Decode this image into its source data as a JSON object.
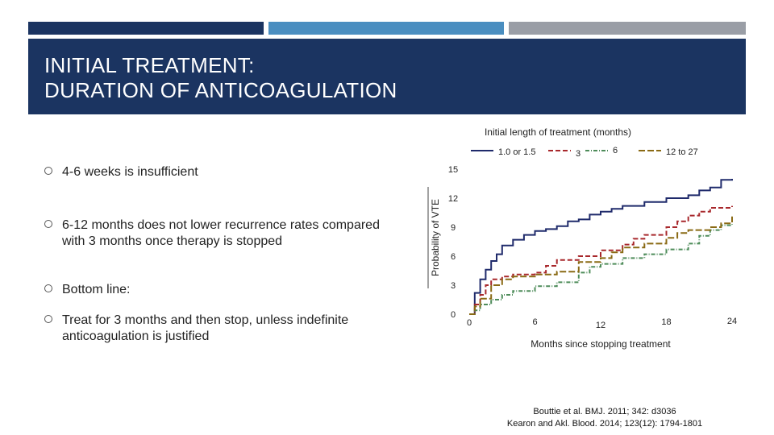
{
  "header": {
    "title_line1": "INITIAL TREATMENT:",
    "title_line2": "DURATION OF ANTICOAGULATION",
    "accent_bars": [
      "#1b3461",
      "#4a8ec0",
      "#9a9ea6"
    ],
    "background": "#1b3461"
  },
  "bullets": [
    "4-6 weeks is insufficient",
    "6-12 months does not lower recurrence rates compared with 3 months once therapy is stopped",
    "Bottom line:",
    "Treat for 3 months and then stop, unless indefinite anticoagulation is justified"
  ],
  "bullet_icon": "circle-bullet-icon",
  "chart_data": {
    "type": "line",
    "title": "Initial length of treatment (months)",
    "xlabel": "Months since stopping treatment",
    "ylabel": "Probability of VTE",
    "xlim": [
      0,
      24
    ],
    "ylim": [
      0,
      15
    ],
    "x_ticks": [
      "0",
      "6",
      "12",
      "18",
      "24"
    ],
    "y_ticks": [
      "0",
      "3",
      "6",
      "9",
      "12",
      "15"
    ],
    "grid": false,
    "legend_position": "top",
    "series": [
      {
        "name": "1.0 or 1.5",
        "color": "#1f2a6b",
        "dash": "solid",
        "points": [
          [
            0,
            0
          ],
          [
            0.5,
            2.2
          ],
          [
            1,
            3.6
          ],
          [
            1.5,
            4.6
          ],
          [
            2,
            5.5
          ],
          [
            2.5,
            6.2
          ],
          [
            3,
            7.1
          ],
          [
            4,
            7.7
          ],
          [
            5,
            8.2
          ],
          [
            6,
            8.6
          ],
          [
            7,
            8.8
          ],
          [
            8,
            9.1
          ],
          [
            9,
            9.6
          ],
          [
            10,
            9.8
          ],
          [
            11,
            10.3
          ],
          [
            12,
            10.6
          ],
          [
            13,
            10.9
          ],
          [
            14,
            11.2
          ],
          [
            16,
            11.6
          ],
          [
            18,
            12.0
          ],
          [
            20,
            12.3
          ],
          [
            21,
            12.8
          ],
          [
            22,
            13.1
          ],
          [
            23,
            13.9
          ],
          [
            24,
            14.0
          ]
        ]
      },
      {
        "name": "3",
        "color": "#a8282c",
        "dash": "dashed",
        "points": [
          [
            0,
            0
          ],
          [
            0.5,
            1.0
          ],
          [
            1,
            2.0
          ],
          [
            1.5,
            3.0
          ],
          [
            2,
            3.6
          ],
          [
            3,
            3.9
          ],
          [
            4,
            4.1
          ],
          [
            6,
            4.3
          ],
          [
            7,
            5.0
          ],
          [
            8,
            5.6
          ],
          [
            10,
            6.0
          ],
          [
            12,
            6.6
          ],
          [
            14,
            7.2
          ],
          [
            15,
            7.8
          ],
          [
            16,
            8.2
          ],
          [
            18,
            9.0
          ],
          [
            19,
            9.6
          ],
          [
            20,
            10.2
          ],
          [
            21,
            10.6
          ],
          [
            22,
            11.0
          ],
          [
            24,
            11.2
          ]
        ]
      },
      {
        "name": "6",
        "color": "#4e8c5a",
        "dash": "dashdot",
        "points": [
          [
            0,
            0
          ],
          [
            0.5,
            0.4
          ],
          [
            1,
            1.0
          ],
          [
            2,
            1.5
          ],
          [
            3,
            2.0
          ],
          [
            4,
            2.4
          ],
          [
            6,
            2.9
          ],
          [
            8,
            3.3
          ],
          [
            10,
            4.3
          ],
          [
            11,
            4.9
          ],
          [
            12,
            5.2
          ],
          [
            14,
            5.8
          ],
          [
            16,
            6.2
          ],
          [
            18,
            6.7
          ],
          [
            20,
            7.3
          ],
          [
            21,
            8.1
          ],
          [
            22,
            8.7
          ],
          [
            23,
            9.2
          ],
          [
            24,
            9.3
          ]
        ]
      },
      {
        "name": "12 to 27",
        "color": "#8a6a14",
        "dash": "longdash",
        "points": [
          [
            0,
            0
          ],
          [
            0.5,
            0.8
          ],
          [
            1,
            1.6
          ],
          [
            2,
            3.0
          ],
          [
            3,
            3.6
          ],
          [
            4,
            3.9
          ],
          [
            6,
            4.1
          ],
          [
            8,
            4.4
          ],
          [
            10,
            5.4
          ],
          [
            12,
            5.8
          ],
          [
            13,
            6.4
          ],
          [
            14,
            6.9
          ],
          [
            16,
            7.3
          ],
          [
            18,
            7.9
          ],
          [
            19,
            8.4
          ],
          [
            20,
            8.7
          ],
          [
            22,
            9.0
          ],
          [
            23,
            9.4
          ],
          [
            24,
            10.1
          ]
        ]
      }
    ]
  },
  "citation": {
    "line1": "Bouttie et al. BMJ. 2011; 342: d3036",
    "line2": "Kearon and Akl. Blood. 2014; 123(12): 1794-1801"
  }
}
